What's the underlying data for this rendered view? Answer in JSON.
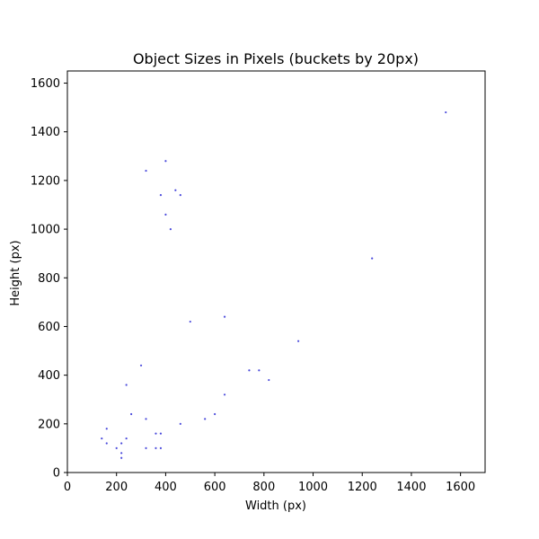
{
  "chart_data": {
    "type": "scatter",
    "title": "Object Sizes in Pixels (buckets by 20px)",
    "xlabel": "Width (px)",
    "ylabel": "Height (px)",
    "xlim": [
      0,
      1700
    ],
    "ylim": [
      0,
      1650
    ],
    "xticks": [
      "0",
      "200",
      "400",
      "600",
      "800",
      "1000",
      "1200",
      "1400",
      "1600"
    ],
    "yticks": [
      "0",
      "200",
      "400",
      "600",
      "800",
      "1000",
      "1200",
      "1400",
      "1600"
    ],
    "grid": false,
    "point_color": "#4b4bdc",
    "series": [
      {
        "points": [
          [
            140,
            140
          ],
          [
            160,
            180
          ],
          [
            160,
            120
          ],
          [
            200,
            100
          ],
          [
            220,
            120
          ],
          [
            220,
            80
          ],
          [
            220,
            60
          ],
          [
            240,
            140
          ],
          [
            240,
            360
          ],
          [
            260,
            240
          ],
          [
            300,
            440
          ],
          [
            320,
            220
          ],
          [
            320,
            100
          ],
          [
            320,
            1240
          ],
          [
            360,
            160
          ],
          [
            360,
            100
          ],
          [
            380,
            160
          ],
          [
            380,
            100
          ],
          [
            380,
            1140
          ],
          [
            400,
            1280
          ],
          [
            400,
            1060
          ],
          [
            420,
            1000
          ],
          [
            440,
            1160
          ],
          [
            460,
            1140
          ],
          [
            460,
            200
          ],
          [
            500,
            620
          ],
          [
            560,
            220
          ],
          [
            600,
            240
          ],
          [
            640,
            640
          ],
          [
            640,
            320
          ],
          [
            740,
            420
          ],
          [
            780,
            420
          ],
          [
            820,
            380
          ],
          [
            940,
            540
          ],
          [
            1240,
            880
          ],
          [
            1540,
            1480
          ]
        ]
      }
    ]
  }
}
